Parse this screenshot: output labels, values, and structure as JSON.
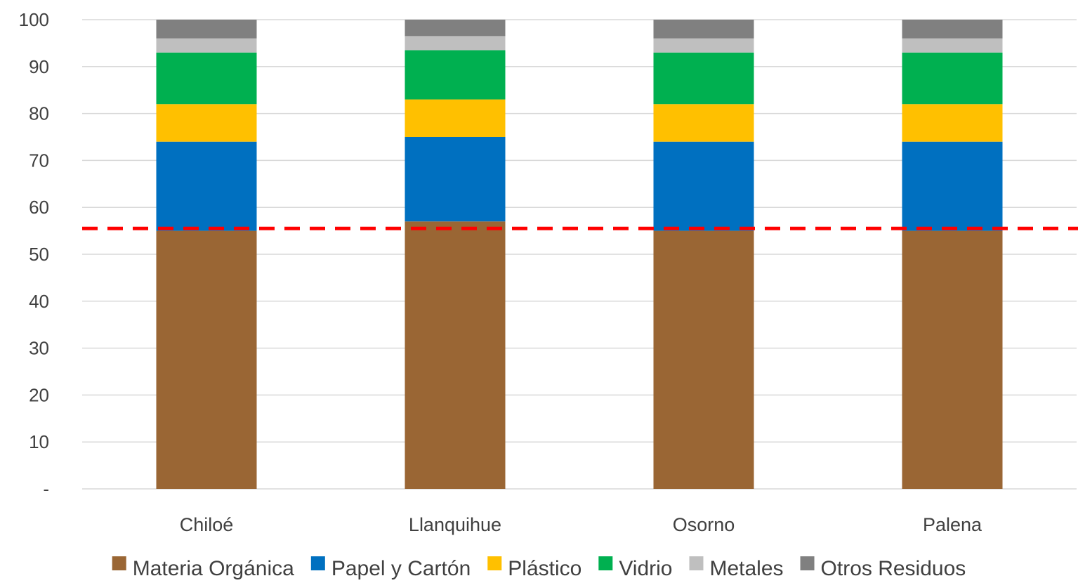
{
  "chart_data": {
    "type": "bar",
    "stacked": true,
    "title": "",
    "xlabel": "",
    "ylabel": "",
    "categories": [
      "Chiloé",
      "Llanquihue",
      "Osorno",
      "Palena"
    ],
    "series": [
      {
        "name": "Materia Orgánica",
        "color": "#9A6634",
        "values": [
          55,
          57,
          55,
          55
        ]
      },
      {
        "name": "Papel y Cartón",
        "color": "#0070C0",
        "values": [
          19,
          18,
          19,
          19
        ]
      },
      {
        "name": "Plástico",
        "color": "#FFC000",
        "values": [
          8,
          8,
          8,
          8
        ]
      },
      {
        "name": "Vidrio",
        "color": "#00B050",
        "values": [
          11,
          10.5,
          11,
          11
        ]
      },
      {
        "name": "Metales",
        "color": "#BFBFBF",
        "values": [
          3,
          3,
          3,
          3
        ]
      },
      {
        "name": "Otros Residuos",
        "color": "#808080",
        "values": [
          4,
          3.5,
          4,
          4
        ]
      }
    ],
    "ylim": [
      0,
      100
    ],
    "yticks": [
      {
        "value": 0,
        "label": "-"
      },
      {
        "value": 10,
        "label": "10"
      },
      {
        "value": 20,
        "label": "20"
      },
      {
        "value": 30,
        "label": "30"
      },
      {
        "value": 40,
        "label": "40"
      },
      {
        "value": 50,
        "label": "50"
      },
      {
        "value": 60,
        "label": "60"
      },
      {
        "value": 70,
        "label": "70"
      },
      {
        "value": 80,
        "label": "80"
      },
      {
        "value": 90,
        "label": "90"
      },
      {
        "value": 100,
        "label": "100"
      }
    ],
    "reference_line": {
      "value": 55.5,
      "color": "#FF0000",
      "style": "dashed"
    },
    "grid": true,
    "legend": "bottom"
  }
}
